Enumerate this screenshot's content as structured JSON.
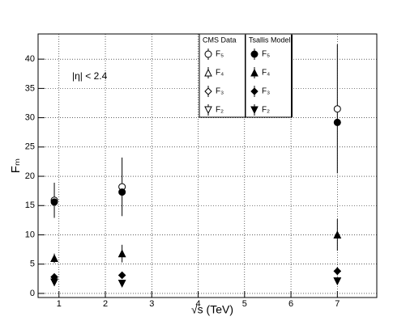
{
  "chart_data": {
    "type": "scatter",
    "x_label": "√s (TeV)",
    "y_label": "Fₘ",
    "annotation": "|η| < 2.4",
    "xlim": [
      0.55,
      7.85
    ],
    "ylim": [
      -0.7,
      44.3
    ],
    "xticks": [
      1,
      2,
      3,
      4,
      5,
      6,
      7
    ],
    "yticks": [
      0,
      5,
      10,
      15,
      20,
      25,
      30,
      35,
      40
    ],
    "grid": true,
    "x": [
      0.9,
      2.36,
      7
    ],
    "groups": [
      {
        "name": "CMS  Data",
        "filled": false,
        "series": [
          {
            "name": "F₅",
            "marker": "circle",
            "color": "#000000",
            "values": [
              15.9,
              18.2,
              31.5
            ],
            "errors": [
              3.0,
              5.0,
              11.0
            ]
          },
          {
            "name": "F₄",
            "marker": "triangle-up",
            "color": "#000000",
            "values": [
              6.0,
              6.8,
              10.0
            ],
            "errors": [
              0.8,
              1.5,
              2.7
            ]
          },
          {
            "name": "F₃",
            "marker": "diamond",
            "color": "#000000",
            "values": [
              2.8,
              3.1,
              3.8
            ],
            "errors": [
              0.5,
              0.6,
              0.7
            ]
          },
          {
            "name": "F₂",
            "marker": "triangle-down",
            "color": "#000000",
            "values": [
              1.9,
              1.7,
              2.1
            ],
            "errors": [
              0.4,
              0.4,
              0.5
            ]
          }
        ]
      },
      {
        "name": "Tsallis Model",
        "filled": true,
        "series": [
          {
            "name": "F₅",
            "marker": "circle",
            "color": "#000000",
            "values": [
              15.6,
              17.3,
              29.2
            ]
          },
          {
            "name": "F₄",
            "marker": "triangle-up",
            "color": "#000000",
            "values": [
              6.0,
              6.8,
              10.0
            ]
          },
          {
            "name": "F₃",
            "marker": "diamond",
            "color": "#000000",
            "values": [
              2.8,
              3.1,
              3.8
            ]
          },
          {
            "name": "F₂",
            "marker": "triangle-down",
            "color": "#000000",
            "values": [
              1.9,
              1.7,
              2.1
            ]
          }
        ]
      }
    ]
  }
}
